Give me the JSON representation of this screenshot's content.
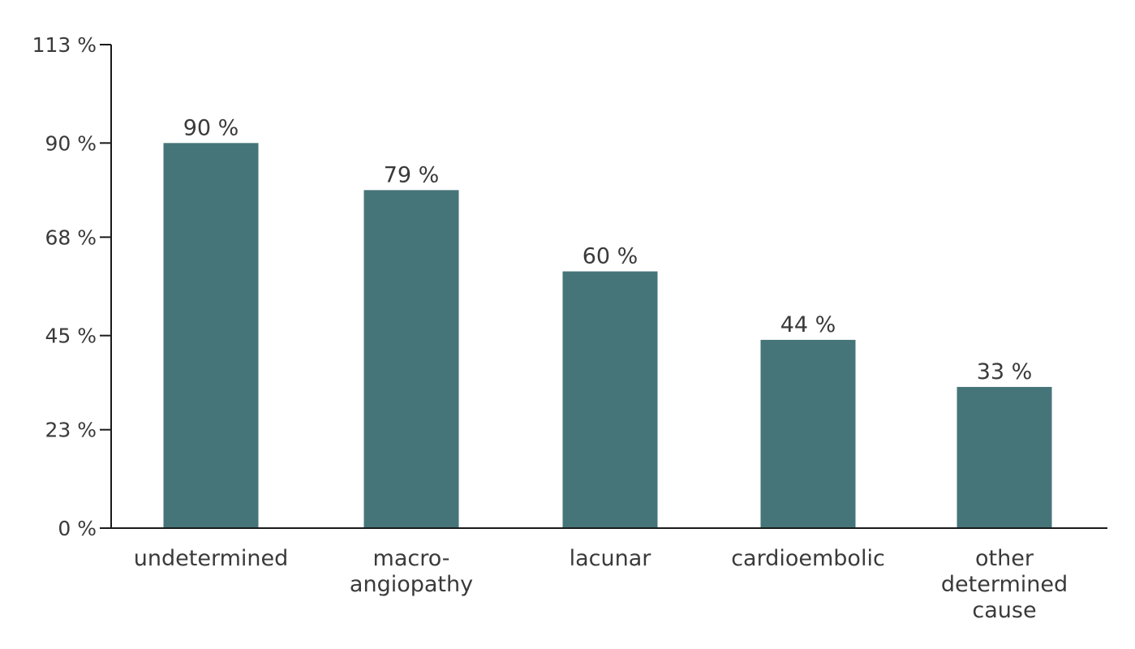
{
  "chart_data": {
    "type": "bar",
    "title": "",
    "xlabel": "",
    "ylabel": "",
    "categories": [
      [
        "undetermined"
      ],
      [
        "macro-",
        "angiopathy"
      ],
      [
        "lacunar"
      ],
      [
        "cardioembolic"
      ],
      [
        "other",
        "determined",
        "cause"
      ]
    ],
    "values": [
      90,
      79,
      60,
      44,
      33
    ],
    "data_labels": [
      "90 %",
      "79 %",
      "60 %",
      "44 %",
      "33 %"
    ],
    "yticks": [
      0,
      23,
      45,
      68,
      90,
      113
    ],
    "ytick_labels": [
      "0 %",
      "23 %",
      "45 %",
      "68 %",
      "90 %",
      "113 %"
    ],
    "ylim": [
      0,
      113
    ],
    "grid": false,
    "legend": "none",
    "bar_color": "#467579"
  }
}
